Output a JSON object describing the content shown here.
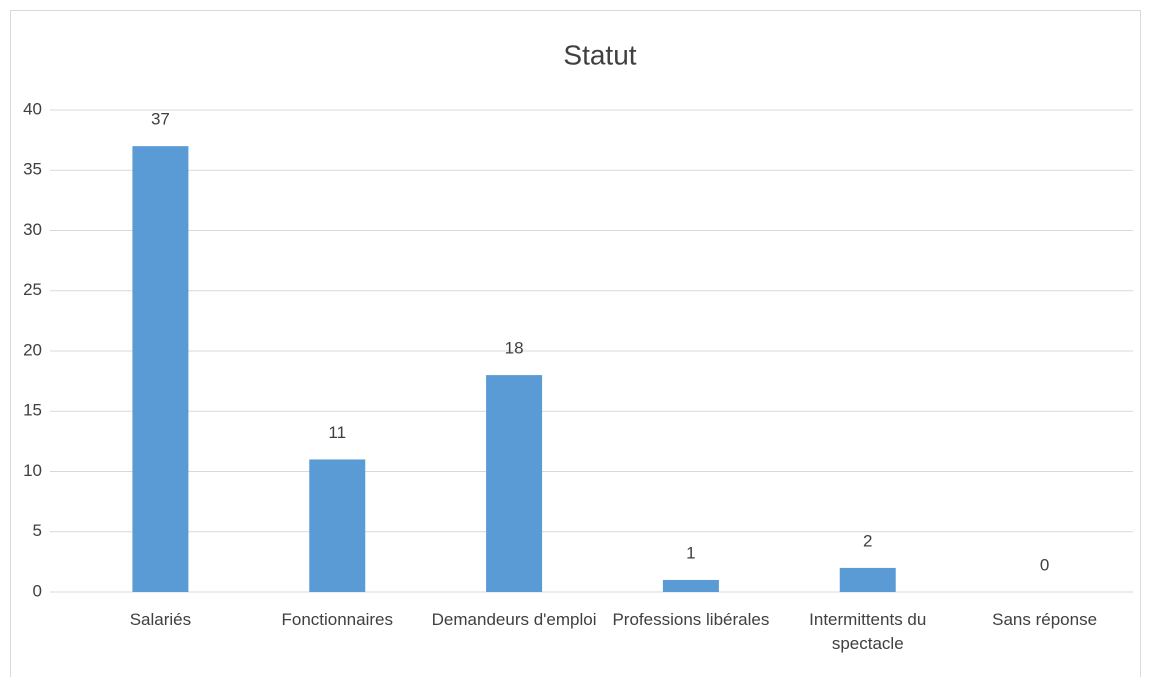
{
  "chart_data": {
    "type": "bar",
    "title": "Statut",
    "categories": [
      "Salariés",
      "Fonctionnaires",
      "Demandeurs d'emploi",
      "Professions libérales",
      "Intermittents du spectacle",
      "Sans réponse"
    ],
    "values": [
      37,
      11,
      18,
      1,
      2,
      0
    ],
    "color": "#5b9bd5",
    "ylim": [
      0,
      40
    ],
    "yticks": [
      0,
      5,
      10,
      15,
      20,
      25,
      30,
      35,
      40
    ],
    "grid": true
  }
}
